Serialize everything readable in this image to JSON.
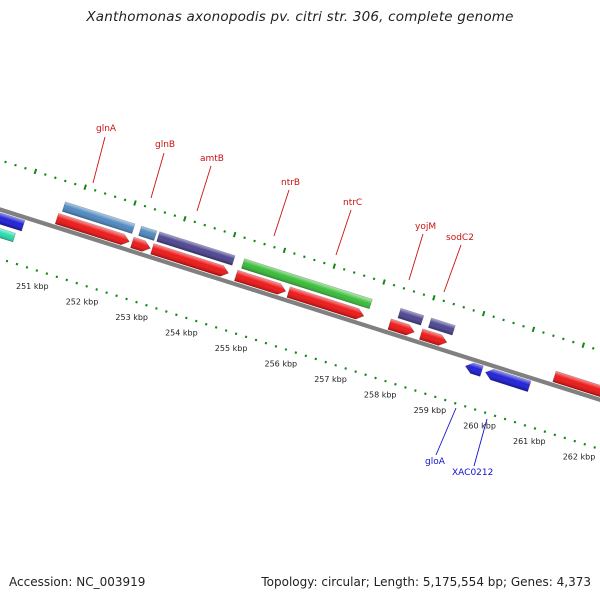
{
  "title": "Xanthomonas axonopodis pv. citri str. 306, complete genome",
  "footer": {
    "accession": "Accession: NC_003919",
    "summary": "Topology: circular; Length: 5,175,554 bp; Genes: 4,373"
  },
  "colors": {
    "backbone": "#808080",
    "ticks": "#118811",
    "forward_label": "#cc1111",
    "reverse_label": "#1111cc",
    "cds": "#ee1111",
    "gene_steel": "#4a86bf",
    "gene_purple": "#48418f",
    "gene_green": "#33bb33",
    "gene_blue": "#1a1ad6",
    "gene_teal": "#22ddaa"
  },
  "scale_labels": [
    {
      "kbp": 251,
      "label": "251 kbp"
    },
    {
      "kbp": 252,
      "label": "252 kbp"
    },
    {
      "kbp": 253,
      "label": "253 kbp"
    },
    {
      "kbp": 254,
      "label": "254 kbp"
    },
    {
      "kbp": 255,
      "label": "255 kbp"
    },
    {
      "kbp": 256,
      "label": "256 kbp"
    },
    {
      "kbp": 257,
      "label": "257 kbp"
    },
    {
      "kbp": 258,
      "label": "258 kbp"
    },
    {
      "kbp": 259,
      "label": "259 kbp"
    },
    {
      "kbp": 260,
      "label": "260 kbp"
    },
    {
      "kbp": 261,
      "label": "261 kbp"
    },
    {
      "kbp": 262,
      "label": "262 kbp"
    }
  ],
  "forward_gene_labels": [
    "glnA",
    "glnB",
    "amtB",
    "ntrB",
    "ntrC",
    "yojM",
    "sodC2"
  ],
  "reverse_gene_labels": [
    "gloA",
    "XAC0212"
  ]
}
